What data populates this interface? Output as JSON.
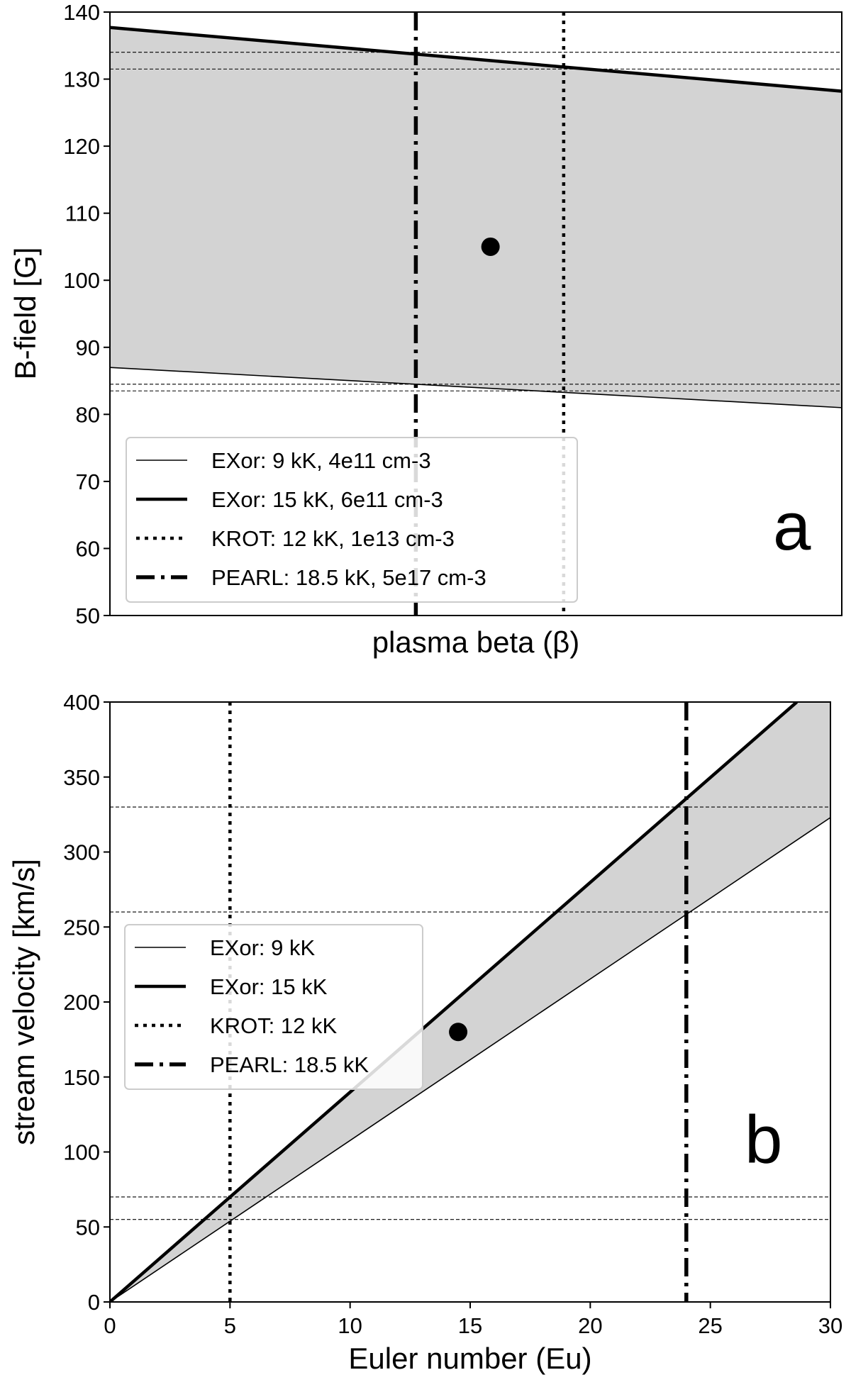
{
  "chart_data": [
    {
      "type": "line",
      "panel_label": "a",
      "xlabel": "plasma beta (β)",
      "ylabel": "B-field [G]",
      "xlim": [
        0,
        1
      ],
      "ylim": [
        50,
        140
      ],
      "x_ticks_shown": false,
      "y_ticks": [
        "50",
        "60",
        "70",
        "80",
        "90",
        "100",
        "110",
        "120",
        "130",
        "140"
      ],
      "fill_between": {
        "color": "#d3d3d3",
        "lower_series": "EXor: 9 kK, 4e11 cm-3",
        "upper_series": "EXor: 15 kK, 6e11 cm-3"
      },
      "series": [
        {
          "name": "EXor: 9 kK, 4e11 cm-3",
          "style": "thin-solid",
          "x": [
            0,
            1
          ],
          "y": [
            87.0,
            81.0
          ]
        },
        {
          "name": "EXor: 15 kK, 6e11 cm-3",
          "style": "thick-solid",
          "x": [
            0,
            1
          ],
          "y": [
            137.7,
            128.2
          ]
        },
        {
          "name": "KROT: 12 kK, 1e13 cm-3",
          "style": "dotted-vertical",
          "x": [
            0.62,
            0.62
          ]
        },
        {
          "name": "PEARL: 18.5 kK, 5e17 cm-3",
          "style": "dashdot-vertical",
          "x": [
            0.418,
            0.418
          ]
        }
      ],
      "reference_lines_y": [
        134.0,
        131.5,
        84.5,
        83.5
      ],
      "point": {
        "x": 0.52,
        "y": 105
      },
      "legend_position": "lower-left",
      "grid": false
    },
    {
      "type": "line",
      "panel_label": "b",
      "xlabel": "Euler number (Eu)",
      "ylabel": "stream velocity [km/s]",
      "xlim": [
        0,
        30
      ],
      "ylim": [
        0,
        400
      ],
      "x_ticks": [
        "0",
        "5",
        "10",
        "15",
        "20",
        "25",
        "30"
      ],
      "y_ticks": [
        "0",
        "50",
        "100",
        "150",
        "200",
        "250",
        "300",
        "350",
        "400"
      ],
      "fill_between": {
        "color": "#d3d3d3",
        "lower_series": "EXor: 9 kK",
        "upper_series": "EXor: 15 kK"
      },
      "series": [
        {
          "name": "EXor: 9 kK",
          "style": "thin-solid",
          "x": [
            0,
            30
          ],
          "y": [
            0,
            323
          ]
        },
        {
          "name": "EXor: 15 kK",
          "style": "thick-solid",
          "x": [
            0,
            28.6
          ],
          "y": [
            0,
            400
          ]
        },
        {
          "name": "KROT: 12 kK",
          "style": "dotted-vertical",
          "x": [
            5,
            5
          ]
        },
        {
          "name": "PEARL: 18.5 kK",
          "style": "dashdot-vertical",
          "x": [
            24,
            24
          ]
        }
      ],
      "reference_lines_y": [
        330,
        260,
        70,
        55
      ],
      "point": {
        "x": 14.5,
        "y": 180
      },
      "legend_position": "upper-left",
      "grid": false
    }
  ]
}
